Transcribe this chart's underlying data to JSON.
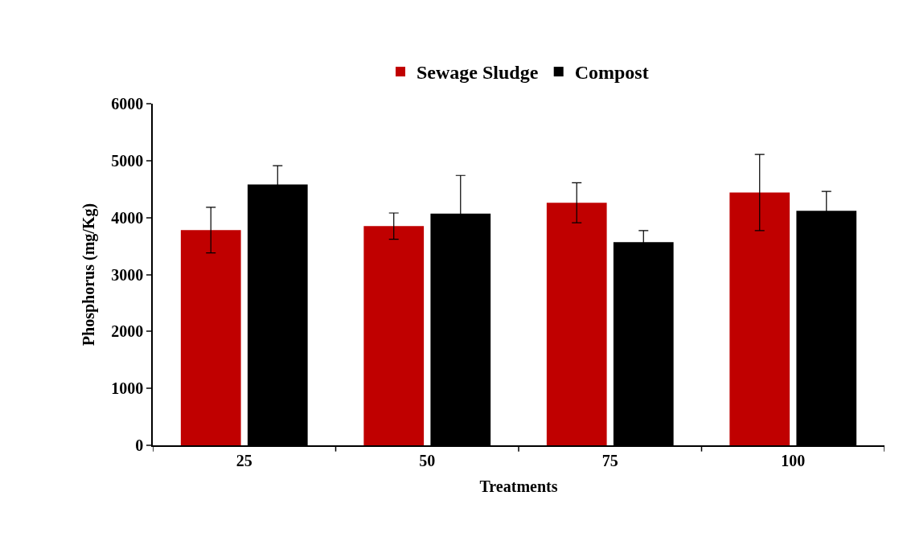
{
  "chart_data": {
    "type": "bar",
    "xlabel": "Treatments",
    "ylabel": "Phosphorus (mg/Kg)",
    "categories": [
      "25",
      "50",
      "75",
      "100"
    ],
    "series": [
      {
        "name": "Sewage Sludge",
        "color": "#c00000",
        "values": [
          3780,
          3850,
          4260,
          4440
        ],
        "errors": [
          400,
          230,
          350,
          670
        ]
      },
      {
        "name": "Compost",
        "color": "#000000",
        "values": [
          4580,
          4070,
          3570,
          4120
        ],
        "errors": [
          330,
          670,
          200,
          340
        ]
      }
    ],
    "ylim": [
      0,
      6000
    ],
    "yticks": [
      0,
      1000,
      2000,
      3000,
      4000,
      5000,
      6000
    ],
    "legend": "top"
  }
}
